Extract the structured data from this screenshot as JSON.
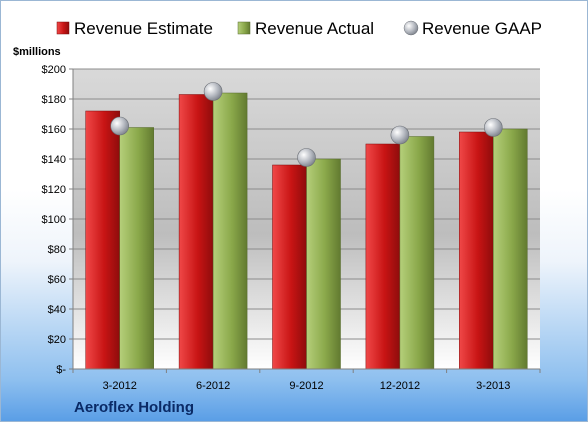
{
  "chart_data": {
    "type": "bar",
    "ylabel": "$millions",
    "categories": [
      "3-2012",
      "6-2012",
      "9-2012",
      "12-2012",
      "3-2013"
    ],
    "series": [
      {
        "name": "Revenue Estimate",
        "values": [
          172,
          183,
          136,
          150,
          158
        ],
        "color": "#d11a1a"
      },
      {
        "name": "Revenue Actual",
        "values": [
          161,
          184,
          140,
          155,
          160
        ],
        "color": "#8fb04a"
      },
      {
        "name": "Revenue GAAP",
        "values": [
          162,
          185,
          141,
          156,
          161
        ],
        "color": "#b8bcc4",
        "marker": "sphere"
      }
    ],
    "ylim": [
      0,
      200
    ],
    "yticks": [
      0,
      20,
      40,
      60,
      80,
      100,
      120,
      140,
      160,
      180,
      200
    ],
    "ytick_labels": [
      "$-",
      "$20",
      "$40",
      "$60",
      "$80",
      "$100",
      "$120",
      "$140",
      "$160",
      "$180",
      "$200"
    ],
    "legend_position": "top",
    "grid": true
  },
  "company_name": "Aeroflex Holding"
}
